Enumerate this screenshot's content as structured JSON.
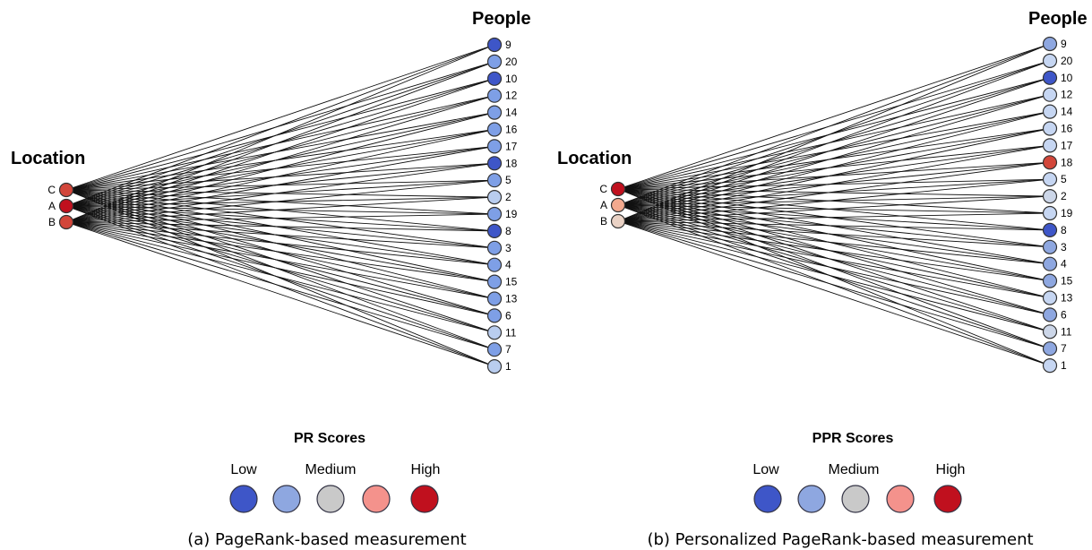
{
  "colors": {
    "low": "#3e56c8",
    "lowmid": "#7e9fe6",
    "medium": "#b9cdef",
    "neutral": "#c9c9c9",
    "highmid": "#f4928c",
    "high": "#c0101e",
    "red": "#d2463a",
    "peach": "#f3a98e",
    "cream": "#ead2c5"
  },
  "panels": [
    {
      "id": "a",
      "location_header": "Location",
      "people_header": "People",
      "locations": [
        {
          "label": "C",
          "color": "#d2463a"
        },
        {
          "label": "A",
          "color": "#c0101e"
        },
        {
          "label": "B",
          "color": "#d2463a"
        }
      ],
      "people": [
        {
          "label": "9",
          "color": "#3e56c8"
        },
        {
          "label": "20",
          "color": "#7e9fe6"
        },
        {
          "label": "10",
          "color": "#3e56c8"
        },
        {
          "label": "12",
          "color": "#7e9fe6"
        },
        {
          "label": "14",
          "color": "#7e9fe6"
        },
        {
          "label": "16",
          "color": "#7e9fe6"
        },
        {
          "label": "17",
          "color": "#7e9fe6"
        },
        {
          "label": "18",
          "color": "#3e56c8"
        },
        {
          "label": "5",
          "color": "#7e9fe6"
        },
        {
          "label": "2",
          "color": "#b9cdef"
        },
        {
          "label": "19",
          "color": "#7e9fe6"
        },
        {
          "label": "8",
          "color": "#3e56c8"
        },
        {
          "label": "3",
          "color": "#7e9fe6"
        },
        {
          "label": "4",
          "color": "#7e9fe6"
        },
        {
          "label": "15",
          "color": "#7e9fe6"
        },
        {
          "label": "13",
          "color": "#7e9fe6"
        },
        {
          "label": "6",
          "color": "#7e9fe6"
        },
        {
          "label": "11",
          "color": "#b9cdef"
        },
        {
          "label": "7",
          "color": "#7e9fe6"
        },
        {
          "label": "1",
          "color": "#b9cdef"
        }
      ],
      "legend": {
        "title": "PR Scores",
        "low": "Low",
        "medium": "Medium",
        "high": "High",
        "swatches": [
          "#3e56c8",
          "#8ea7e0",
          "#c9c9c9",
          "#f4928c",
          "#c0101e"
        ]
      },
      "caption": "(a) PageRank-based measurement"
    },
    {
      "id": "b",
      "location_header": "Location",
      "people_header": "People",
      "locations": [
        {
          "label": "C",
          "color": "#c0101e"
        },
        {
          "label": "A",
          "color": "#f3a98e"
        },
        {
          "label": "B",
          "color": "#ead2c5"
        }
      ],
      "people": [
        {
          "label": "9",
          "color": "#8ea7e0"
        },
        {
          "label": "20",
          "color": "#c6d6f2"
        },
        {
          "label": "10",
          "color": "#3e56c8"
        },
        {
          "label": "12",
          "color": "#c6d6f2"
        },
        {
          "label": "14",
          "color": "#c6d6f2"
        },
        {
          "label": "16",
          "color": "#c6d6f2"
        },
        {
          "label": "17",
          "color": "#c6d6f2"
        },
        {
          "label": "18",
          "color": "#d2463a"
        },
        {
          "label": "5",
          "color": "#c6d6f2"
        },
        {
          "label": "2",
          "color": "#ccd6e8"
        },
        {
          "label": "19",
          "color": "#c6d6f2"
        },
        {
          "label": "8",
          "color": "#3e56c8"
        },
        {
          "label": "3",
          "color": "#8ea7e0"
        },
        {
          "label": "4",
          "color": "#8ea7e0"
        },
        {
          "label": "15",
          "color": "#8ea7e0"
        },
        {
          "label": "13",
          "color": "#c6d6f2"
        },
        {
          "label": "6",
          "color": "#8ea7e0"
        },
        {
          "label": "11",
          "color": "#ccd6e8"
        },
        {
          "label": "7",
          "color": "#8ea7e0"
        },
        {
          "label": "1",
          "color": "#c6d6f2"
        }
      ],
      "legend": {
        "title": "PPR Scores",
        "low": "Low",
        "medium": "Medium",
        "high": "High",
        "swatches": [
          "#3e56c8",
          "#8ea7e0",
          "#c9c9c9",
          "#f4928c",
          "#c0101e"
        ]
      },
      "caption": "(b) Personalized PageRank-based measurement"
    }
  ]
}
